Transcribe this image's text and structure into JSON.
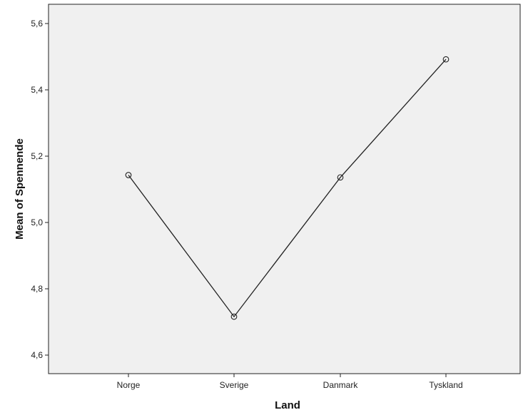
{
  "chart_data": {
    "type": "line",
    "categories": [
      "Norge",
      "Sverige",
      "Danmark",
      "Tyskland"
    ],
    "series": [
      {
        "values": [
          5.143,
          4.716,
          5.136,
          5.492
        ]
      }
    ],
    "xlabel": "Land",
    "ylabel": "Mean of Spennende",
    "ylim": [
      4.56,
      5.62
    ],
    "yticks": [
      4.6,
      4.8,
      5.0,
      5.2,
      5.4,
      5.6
    ],
    "ytick_labels": [
      "4,6",
      "4,8",
      "5,0",
      "5,2",
      "5,4",
      "5,6"
    ],
    "grid": false,
    "markers": "hollow-circle",
    "colors": {
      "plot_background": "#f0f0f0",
      "line": "#222222",
      "axis": "#222222"
    }
  }
}
